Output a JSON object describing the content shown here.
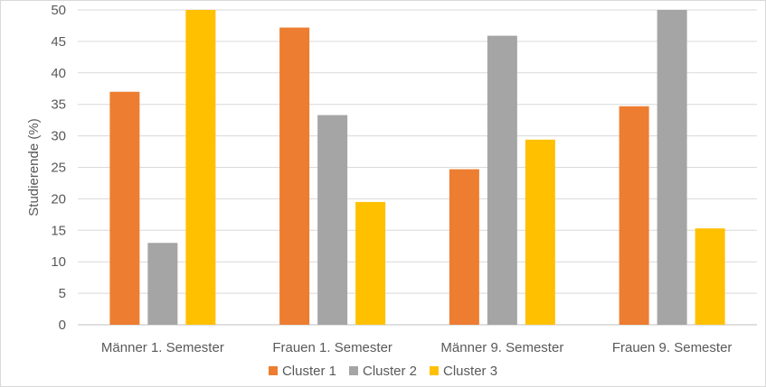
{
  "chart_data": {
    "type": "bar",
    "title": "",
    "xlabel": "",
    "ylabel": "Studierende (%)",
    "ylim": [
      0,
      50
    ],
    "yticks": [
      0,
      5,
      10,
      15,
      20,
      25,
      30,
      35,
      40,
      45,
      50
    ],
    "grid": true,
    "legend_position": "bottom",
    "categories": [
      "Männer 1. Semester",
      "Frauen 1. Semester",
      "Männer 9. Semester",
      "Frauen 9. Semester"
    ],
    "series": [
      {
        "name": "Cluster 1",
        "color": "#ED7D31",
        "values": [
          37.0,
          47.2,
          24.7,
          34.7
        ]
      },
      {
        "name": "Cluster 2",
        "color": "#A5A5A5",
        "values": [
          13.0,
          33.3,
          45.9,
          50.0
        ]
      },
      {
        "name": "Cluster 3",
        "color": "#FFC000",
        "values": [
          50.0,
          19.5,
          29.4,
          15.3
        ]
      }
    ]
  }
}
